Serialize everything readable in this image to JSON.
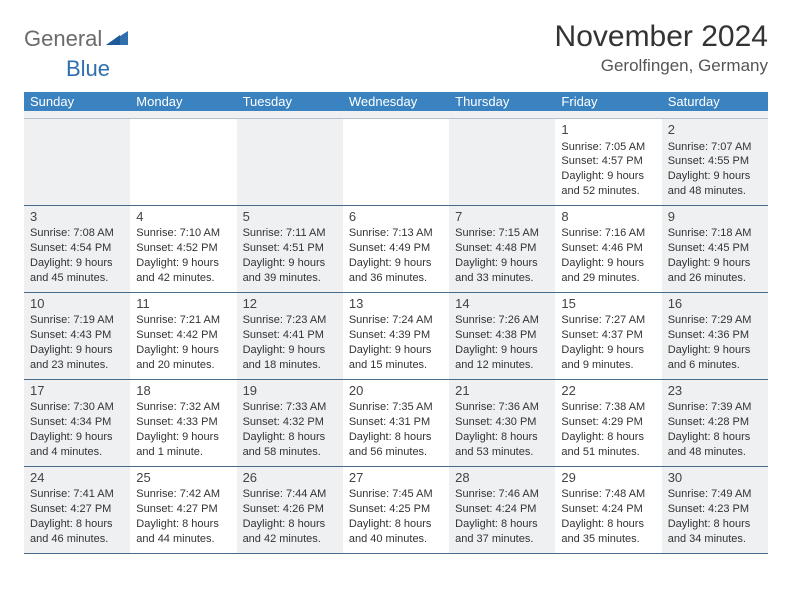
{
  "logo": {
    "word1": "General",
    "word2": "Blue",
    "triangle_color": "#2f6fae"
  },
  "title": "November 2024",
  "location": "Gerolfingen, Germany",
  "colors": {
    "header_bg": "#3b83c0",
    "header_text": "#ffffff",
    "shaded_bg": "#eef0f2",
    "rule": "#4a6a8a",
    "text": "#333333"
  },
  "weekdays": [
    "Sunday",
    "Monday",
    "Tuesday",
    "Wednesday",
    "Thursday",
    "Friday",
    "Saturday"
  ],
  "weeks": [
    [
      {
        "num": "",
        "sunrise": "",
        "sunset": "",
        "daylight": "",
        "shaded": true
      },
      {
        "num": "",
        "sunrise": "",
        "sunset": "",
        "daylight": "",
        "shaded": false
      },
      {
        "num": "",
        "sunrise": "",
        "sunset": "",
        "daylight": "",
        "shaded": true
      },
      {
        "num": "",
        "sunrise": "",
        "sunset": "",
        "daylight": "",
        "shaded": false
      },
      {
        "num": "",
        "sunrise": "",
        "sunset": "",
        "daylight": "",
        "shaded": true
      },
      {
        "num": "1",
        "sunrise": "Sunrise: 7:05 AM",
        "sunset": "Sunset: 4:57 PM",
        "daylight": "Daylight: 9 hours and 52 minutes.",
        "shaded": false
      },
      {
        "num": "2",
        "sunrise": "Sunrise: 7:07 AM",
        "sunset": "Sunset: 4:55 PM",
        "daylight": "Daylight: 9 hours and 48 minutes.",
        "shaded": true
      }
    ],
    [
      {
        "num": "3",
        "sunrise": "Sunrise: 7:08 AM",
        "sunset": "Sunset: 4:54 PM",
        "daylight": "Daylight: 9 hours and 45 minutes.",
        "shaded": true
      },
      {
        "num": "4",
        "sunrise": "Sunrise: 7:10 AM",
        "sunset": "Sunset: 4:52 PM",
        "daylight": "Daylight: 9 hours and 42 minutes.",
        "shaded": false
      },
      {
        "num": "5",
        "sunrise": "Sunrise: 7:11 AM",
        "sunset": "Sunset: 4:51 PM",
        "daylight": "Daylight: 9 hours and 39 minutes.",
        "shaded": true
      },
      {
        "num": "6",
        "sunrise": "Sunrise: 7:13 AM",
        "sunset": "Sunset: 4:49 PM",
        "daylight": "Daylight: 9 hours and 36 minutes.",
        "shaded": false
      },
      {
        "num": "7",
        "sunrise": "Sunrise: 7:15 AM",
        "sunset": "Sunset: 4:48 PM",
        "daylight": "Daylight: 9 hours and 33 minutes.",
        "shaded": true
      },
      {
        "num": "8",
        "sunrise": "Sunrise: 7:16 AM",
        "sunset": "Sunset: 4:46 PM",
        "daylight": "Daylight: 9 hours and 29 minutes.",
        "shaded": false
      },
      {
        "num": "9",
        "sunrise": "Sunrise: 7:18 AM",
        "sunset": "Sunset: 4:45 PM",
        "daylight": "Daylight: 9 hours and 26 minutes.",
        "shaded": true
      }
    ],
    [
      {
        "num": "10",
        "sunrise": "Sunrise: 7:19 AM",
        "sunset": "Sunset: 4:43 PM",
        "daylight": "Daylight: 9 hours and 23 minutes.",
        "shaded": true
      },
      {
        "num": "11",
        "sunrise": "Sunrise: 7:21 AM",
        "sunset": "Sunset: 4:42 PM",
        "daylight": "Daylight: 9 hours and 20 minutes.",
        "shaded": false
      },
      {
        "num": "12",
        "sunrise": "Sunrise: 7:23 AM",
        "sunset": "Sunset: 4:41 PM",
        "daylight": "Daylight: 9 hours and 18 minutes.",
        "shaded": true
      },
      {
        "num": "13",
        "sunrise": "Sunrise: 7:24 AM",
        "sunset": "Sunset: 4:39 PM",
        "daylight": "Daylight: 9 hours and 15 minutes.",
        "shaded": false
      },
      {
        "num": "14",
        "sunrise": "Sunrise: 7:26 AM",
        "sunset": "Sunset: 4:38 PM",
        "daylight": "Daylight: 9 hours and 12 minutes.",
        "shaded": true
      },
      {
        "num": "15",
        "sunrise": "Sunrise: 7:27 AM",
        "sunset": "Sunset: 4:37 PM",
        "daylight": "Daylight: 9 hours and 9 minutes.",
        "shaded": false
      },
      {
        "num": "16",
        "sunrise": "Sunrise: 7:29 AM",
        "sunset": "Sunset: 4:36 PM",
        "daylight": "Daylight: 9 hours and 6 minutes.",
        "shaded": true
      }
    ],
    [
      {
        "num": "17",
        "sunrise": "Sunrise: 7:30 AM",
        "sunset": "Sunset: 4:34 PM",
        "daylight": "Daylight: 9 hours and 4 minutes.",
        "shaded": true
      },
      {
        "num": "18",
        "sunrise": "Sunrise: 7:32 AM",
        "sunset": "Sunset: 4:33 PM",
        "daylight": "Daylight: 9 hours and 1 minute.",
        "shaded": false
      },
      {
        "num": "19",
        "sunrise": "Sunrise: 7:33 AM",
        "sunset": "Sunset: 4:32 PM",
        "daylight": "Daylight: 8 hours and 58 minutes.",
        "shaded": true
      },
      {
        "num": "20",
        "sunrise": "Sunrise: 7:35 AM",
        "sunset": "Sunset: 4:31 PM",
        "daylight": "Daylight: 8 hours and 56 minutes.",
        "shaded": false
      },
      {
        "num": "21",
        "sunrise": "Sunrise: 7:36 AM",
        "sunset": "Sunset: 4:30 PM",
        "daylight": "Daylight: 8 hours and 53 minutes.",
        "shaded": true
      },
      {
        "num": "22",
        "sunrise": "Sunrise: 7:38 AM",
        "sunset": "Sunset: 4:29 PM",
        "daylight": "Daylight: 8 hours and 51 minutes.",
        "shaded": false
      },
      {
        "num": "23",
        "sunrise": "Sunrise: 7:39 AM",
        "sunset": "Sunset: 4:28 PM",
        "daylight": "Daylight: 8 hours and 48 minutes.",
        "shaded": true
      }
    ],
    [
      {
        "num": "24",
        "sunrise": "Sunrise: 7:41 AM",
        "sunset": "Sunset: 4:27 PM",
        "daylight": "Daylight: 8 hours and 46 minutes.",
        "shaded": true
      },
      {
        "num": "25",
        "sunrise": "Sunrise: 7:42 AM",
        "sunset": "Sunset: 4:27 PM",
        "daylight": "Daylight: 8 hours and 44 minutes.",
        "shaded": false
      },
      {
        "num": "26",
        "sunrise": "Sunrise: 7:44 AM",
        "sunset": "Sunset: 4:26 PM",
        "daylight": "Daylight: 8 hours and 42 minutes.",
        "shaded": true
      },
      {
        "num": "27",
        "sunrise": "Sunrise: 7:45 AM",
        "sunset": "Sunset: 4:25 PM",
        "daylight": "Daylight: 8 hours and 40 minutes.",
        "shaded": false
      },
      {
        "num": "28",
        "sunrise": "Sunrise: 7:46 AM",
        "sunset": "Sunset: 4:24 PM",
        "daylight": "Daylight: 8 hours and 37 minutes.",
        "shaded": true
      },
      {
        "num": "29",
        "sunrise": "Sunrise: 7:48 AM",
        "sunset": "Sunset: 4:24 PM",
        "daylight": "Daylight: 8 hours and 35 minutes.",
        "shaded": false
      },
      {
        "num": "30",
        "sunrise": "Sunrise: 7:49 AM",
        "sunset": "Sunset: 4:23 PM",
        "daylight": "Daylight: 8 hours and 34 minutes.",
        "shaded": true
      }
    ]
  ]
}
